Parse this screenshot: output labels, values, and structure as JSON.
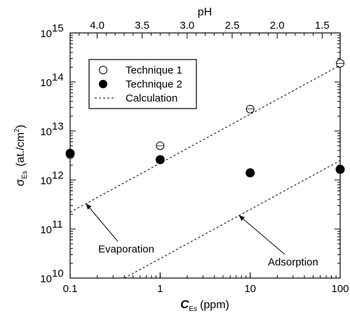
{
  "chart_data": {
    "type": "scatter",
    "x_axis": {
      "label": "C",
      "label_subscript": "Es",
      "label_unit": "(ppm)",
      "scale": "log",
      "range": [
        0.1,
        100
      ],
      "ticks": [
        {
          "value": 0.1,
          "label": "0.1"
        },
        {
          "value": 1,
          "label": "1"
        },
        {
          "value": 10,
          "label": "10"
        },
        {
          "value": 100,
          "label": "100"
        }
      ]
    },
    "x2_axis": {
      "label": "pH",
      "ticks": [
        {
          "value": 4.0,
          "label": "4.0"
        },
        {
          "value": 3.5,
          "label": "3.5"
        },
        {
          "value": 3.0,
          "label": "3.0"
        },
        {
          "value": 2.5,
          "label": "2.5"
        },
        {
          "value": 2.0,
          "label": "2.0"
        },
        {
          "value": 1.5,
          "label": "1.5"
        }
      ]
    },
    "y_axis": {
      "label": "σ",
      "label_subscript": "Es",
      "label_unit": "(at./cm",
      "label_unit_sup": "2",
      "label_unit_end": ")",
      "scale": "log",
      "range": [
        10000000000.0,
        1000000000000000.0
      ],
      "ticks": [
        {
          "value": 10000000000.0,
          "base": "10",
          "exp": "10"
        },
        {
          "value": 100000000000.0,
          "base": "10",
          "exp": "11"
        },
        {
          "value": 1000000000000.0,
          "base": "10",
          "exp": "12"
        },
        {
          "value": 10000000000000.0,
          "base": "10",
          "exp": "13"
        },
        {
          "value": 100000000000000.0,
          "base": "10",
          "exp": "14"
        },
        {
          "value": 1000000000000000.0,
          "base": "10",
          "exp": "15"
        }
      ]
    },
    "series": [
      {
        "name": "Technique 1",
        "marker": "open-circle",
        "points": [
          {
            "x": 0.1,
            "y": 3300000000000.0
          },
          {
            "x": 1,
            "y": 5000000000000.0
          },
          {
            "x": 10,
            "y": 28000000000000.0
          },
          {
            "x": 100,
            "y": 240000000000000.0
          }
        ]
      },
      {
        "name": "Technique 2",
        "marker": "filled-circle",
        "points": [
          {
            "x": 0.1,
            "y": 3500000000000.0
          },
          {
            "x": 1,
            "y": 2600000000000.0
          },
          {
            "x": 10,
            "y": 1400000000000.0
          },
          {
            "x": 100,
            "y": 1650000000000.0
          }
        ]
      }
    ],
    "lines": [
      {
        "name": "Calculation",
        "label": "Evaporation",
        "style": "dashed",
        "points": [
          {
            "x": 0.1,
            "y": 220000000000.0
          },
          {
            "x": 100,
            "y": 220000000000000.0
          }
        ]
      },
      {
        "name": "Calculation",
        "label": "Adsorption",
        "style": "dashed",
        "points": [
          {
            "x": 0.4,
            "y": 10000000000.0
          },
          {
            "x": 100,
            "y": 2500000000000.0
          }
        ]
      }
    ],
    "annotations": [
      {
        "text": "Evaporation",
        "text_at": {
          "x": 0.42,
          "y": 33000000000.0
        },
        "arrow_to": {
          "x": 0.15,
          "y": 330000000000.0
        }
      },
      {
        "text": "Adsorption",
        "text_at": {
          "x": 30,
          "y": 18000000000.0
        },
        "arrow_to": {
          "x": 7.5,
          "y": 190000000000.0
        }
      }
    ],
    "legend": {
      "placement": "top-left",
      "entries": [
        {
          "label": "Technique 1",
          "marker": "open-circle"
        },
        {
          "label": "Technique 2",
          "marker": "filled-circle"
        },
        {
          "label": "Calculation",
          "marker": "dashed-line"
        }
      ]
    },
    "grid": false
  }
}
